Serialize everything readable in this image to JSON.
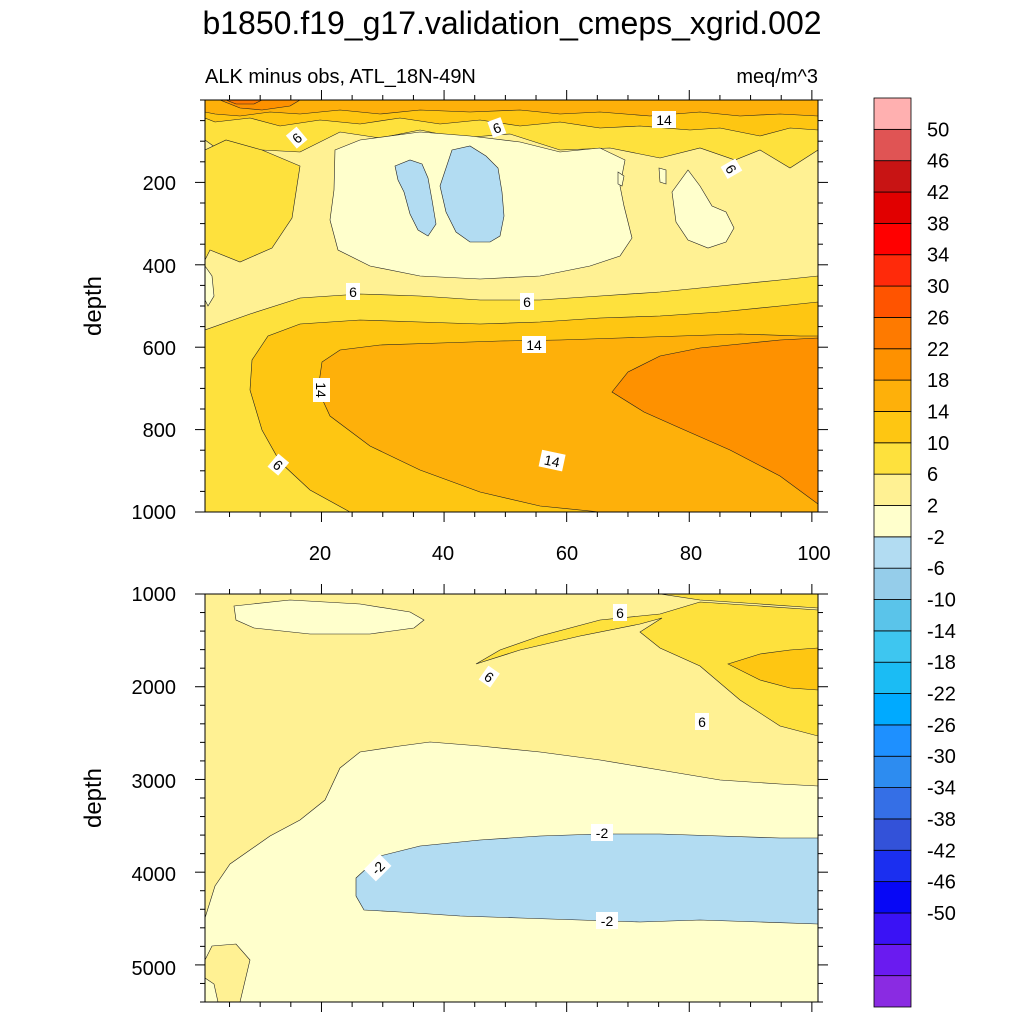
{
  "title": "b1850.f19_g17.validation_cmeps_xgrid.002",
  "colors": {
    "colorbar": [
      "#8a2be2",
      "#6a1bf0",
      "#3a12f5",
      "#0707f6",
      "#1b2ff0",
      "#3352d9",
      "#356fe6",
      "#2d8cf0",
      "#1e90ff",
      "#00aaff",
      "#1bbcf4",
      "#3ec6f0",
      "#5ac4ea",
      "#95cdea",
      "#b2dcf2",
      "#ffffcc",
      "#fff193",
      "#fee13d",
      "#fec612",
      "#feb00a",
      "#fe9100",
      "#fe7a00",
      "#ff5400",
      "#ff2a0a",
      "#ff0000",
      "#e10000",
      "#c81414",
      "#e05454",
      "#ffb0b0"
    ]
  },
  "chart_data": [
    {
      "type": "contour",
      "subtitle_left": "ALK minus obs, ATL_18N-49N",
      "subtitle_right": "meq/m^3",
      "ylabel": "depth",
      "xlabel": "",
      "xlim": [
        1,
        101
      ],
      "ylim": [
        1000,
        0
      ],
      "x_ticks": [
        "20",
        "40",
        "60",
        "80",
        "100"
      ],
      "y_ticks": [
        "200",
        "400",
        "600",
        "800",
        "1000"
      ],
      "contour_labels": [
        "6",
        "6",
        "14",
        "6",
        "6",
        "6",
        "14",
        "14",
        "6",
        "14"
      ],
      "regions": [
        {
          "level": "14 to 18",
          "x": [
            23,
            101
          ],
          "y": [
            600,
            1000
          ]
        },
        {
          "level": "18 to 22",
          "x": [
            68,
            101
          ],
          "y": [
            580,
            1000
          ]
        },
        {
          "level": "-2 to 2",
          "x": [
            22,
            70
          ],
          "y": [
            90,
            430
          ]
        },
        {
          "level": "-6 to -2",
          "x": [
            33,
            50
          ],
          "y": [
            140,
            310
          ]
        }
      ]
    },
    {
      "type": "contour",
      "ylabel": "depth",
      "xlabel": "",
      "xlim": [
        1,
        101
      ],
      "ylim": [
        5400,
        1000
      ],
      "y_ticks": [
        "1000",
        "2000",
        "3000",
        "4000",
        "5000"
      ],
      "contour_labels": [
        "6",
        "6",
        "6",
        "-2",
        "-2",
        "-2"
      ],
      "regions": [
        {
          "level": "6 to 10",
          "x": [
            44,
            101
          ],
          "y": [
            1000,
            2600
          ]
        },
        {
          "level": "-2 to 2",
          "x": [
            1,
            101
          ],
          "y": [
            2600,
            5400
          ]
        },
        {
          "level": "-6 to -2",
          "x": [
            26,
            101
          ],
          "y": [
            3600,
            4550
          ]
        }
      ]
    }
  ],
  "colorbar": {
    "labels": [
      "50",
      "46",
      "42",
      "38",
      "34",
      "30",
      "26",
      "22",
      "18",
      "14",
      "10",
      "6",
      "2",
      "-2",
      "-6",
      "-10",
      "-14",
      "-18",
      "-22",
      "-26",
      "-30",
      "-34",
      "-38",
      "-42",
      "-46",
      "-50"
    ]
  }
}
